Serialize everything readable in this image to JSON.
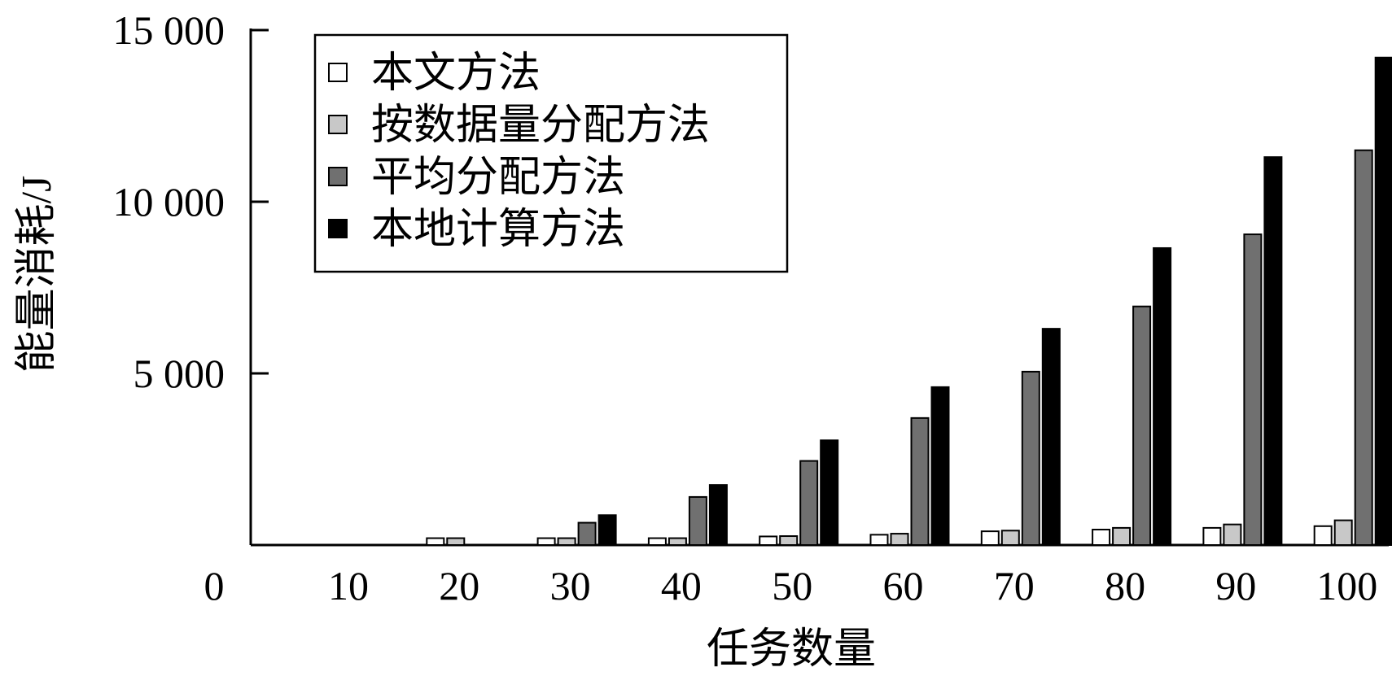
{
  "chart_data": {
    "type": "bar",
    "xlabel": "任务数量",
    "ylabel": "能量消耗/J",
    "ylim": [
      0,
      15000
    ],
    "yticks": [
      0,
      5000,
      10000,
      15000
    ],
    "ytick_labels": [
      "0",
      "5 000",
      "10 000",
      "15 000"
    ],
    "categories": [
      "10",
      "20",
      "30",
      "40",
      "50",
      "60",
      "70",
      "80",
      "90",
      "100"
    ],
    "legend_position": "top-left",
    "grid": false,
    "series": [
      {
        "name": "本文方法",
        "color": "#ffffff",
        "values": [
          0,
          200,
          200,
          200,
          250,
          300,
          400,
          450,
          500,
          550
        ]
      },
      {
        "name": "按数据量分配方法",
        "color": "#c8c8c8",
        "values": [
          0,
          200,
          200,
          200,
          260,
          330,
          420,
          500,
          600,
          720
        ]
      },
      {
        "name": "平均分配方法",
        "color": "#707070",
        "values": [
          0,
          0,
          650,
          1400,
          2450,
          3700,
          5050,
          6950,
          9050,
          11500
        ]
      },
      {
        "name": "本地计算方法",
        "color": "#000000",
        "values": [
          0,
          0,
          870,
          1750,
          3050,
          4600,
          6300,
          8650,
          11300,
          14200
        ]
      }
    ]
  }
}
